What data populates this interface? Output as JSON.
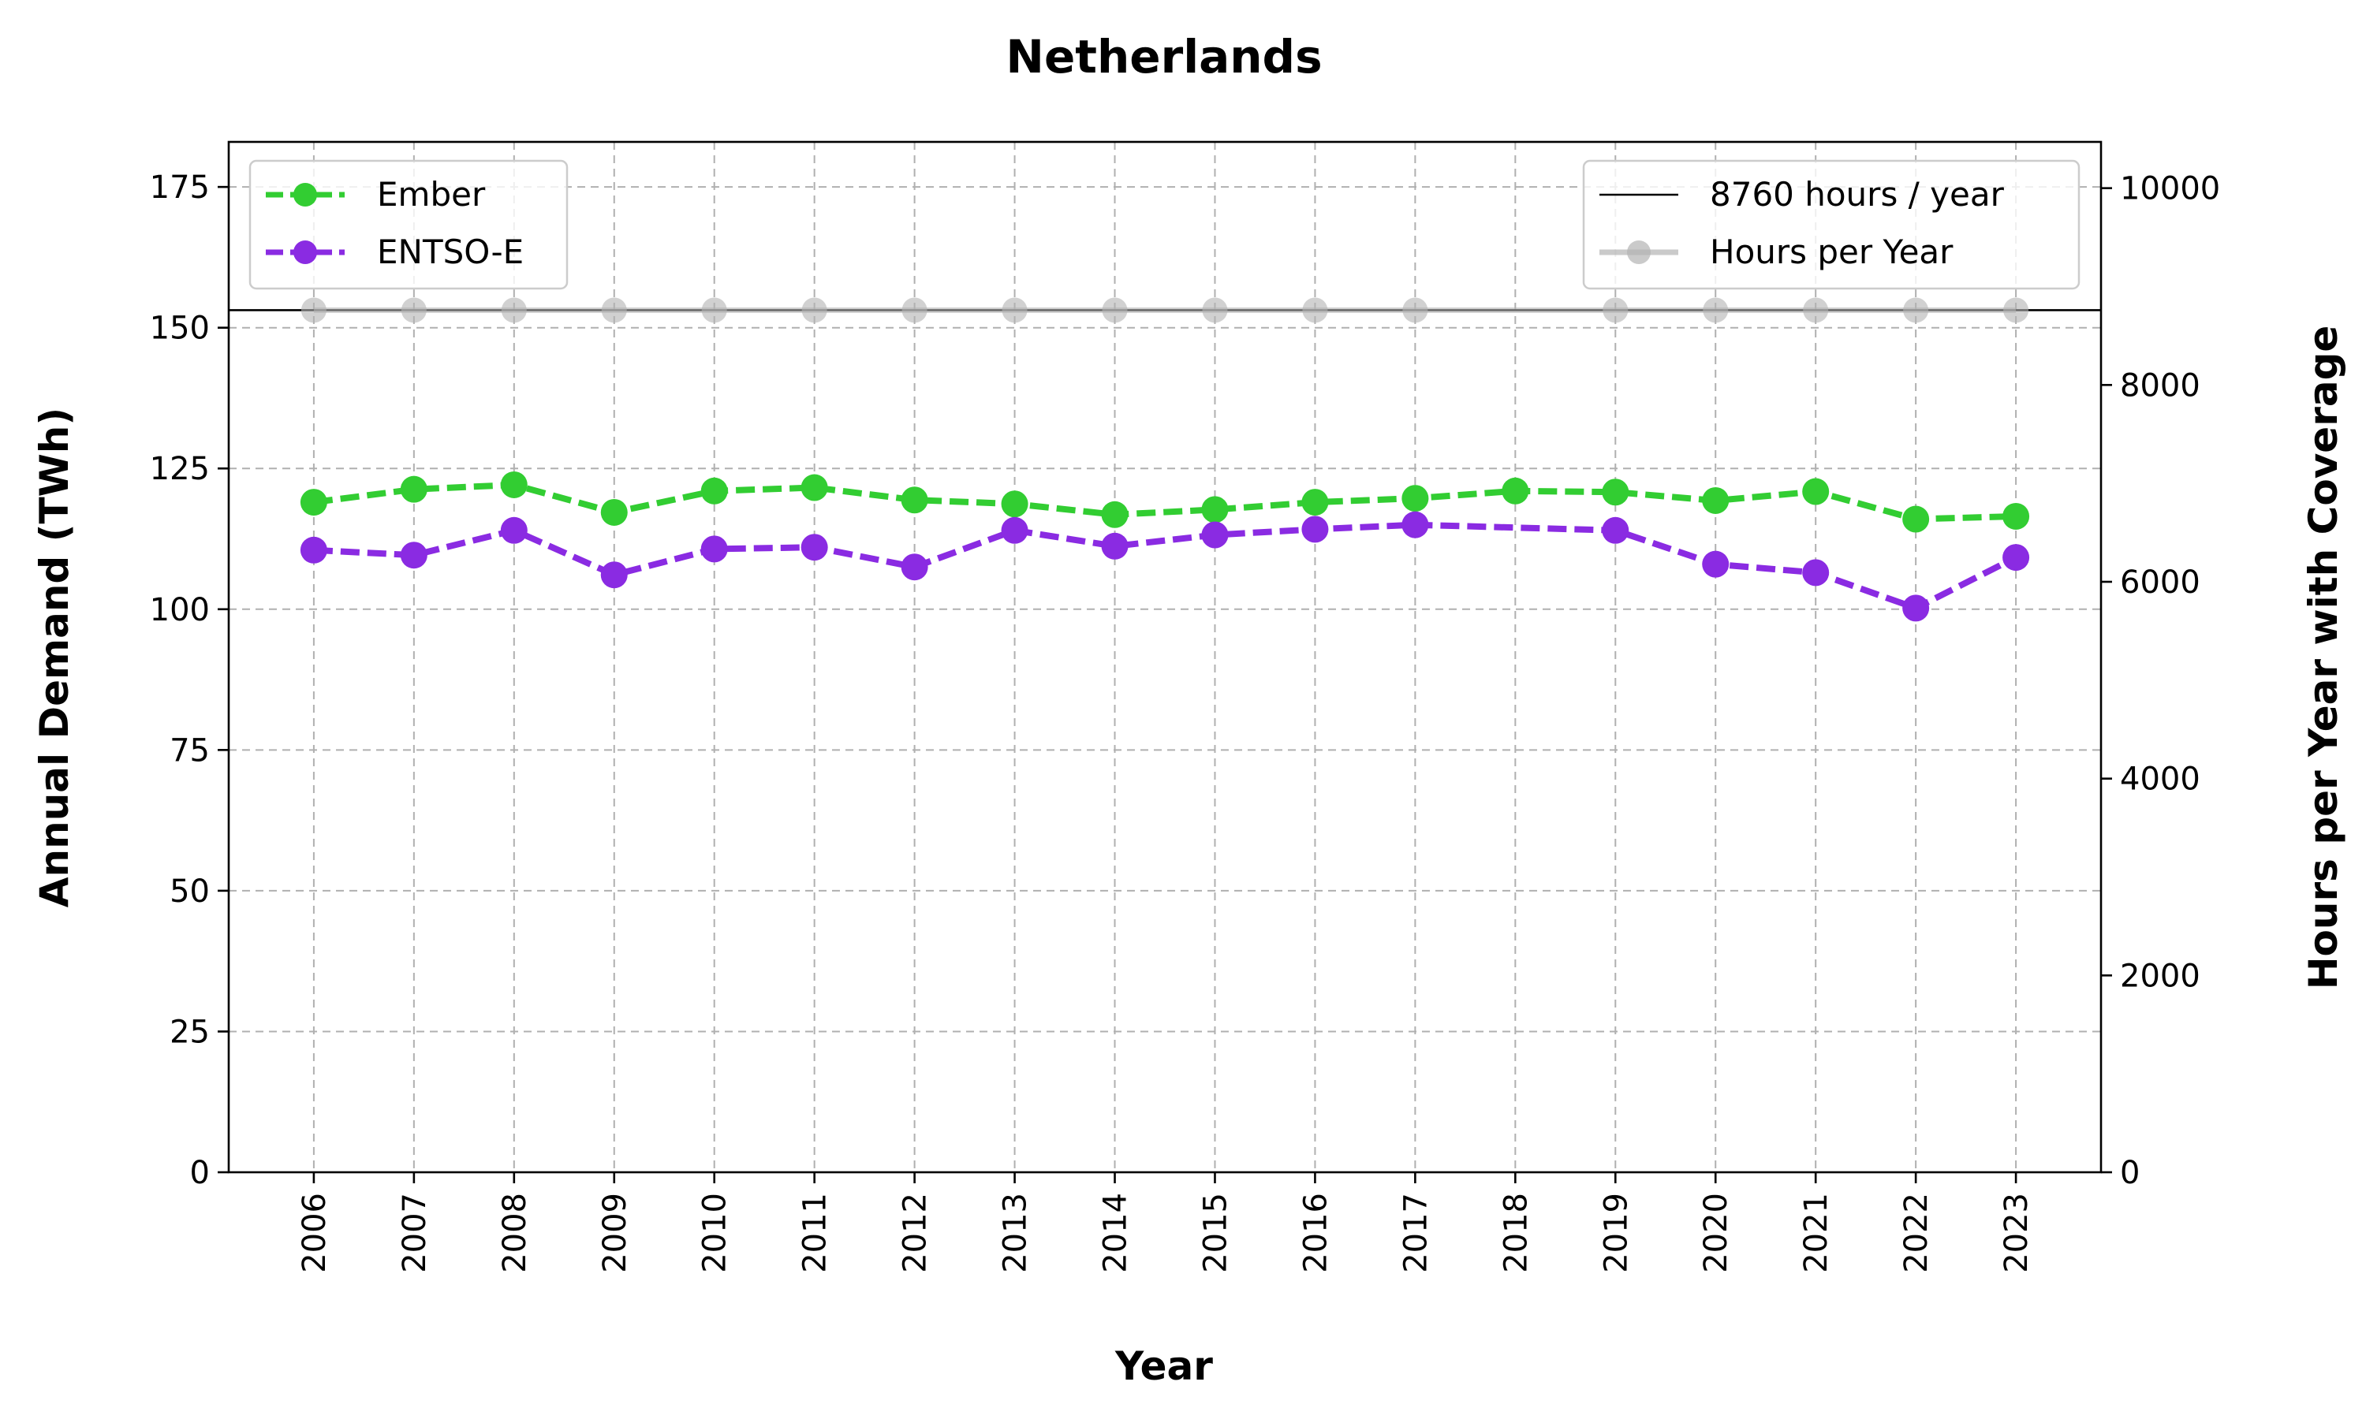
{
  "chart_data": {
    "type": "line",
    "title": "Netherlands",
    "xlabel": "Year",
    "ylabel": "Annual Demand (TWh)",
    "y2label": "Hours per Year with Coverage",
    "categories": [
      "2006",
      "2007",
      "2008",
      "2009",
      "2010",
      "2011",
      "2012",
      "2013",
      "2014",
      "2015",
      "2016",
      "2017",
      "2018",
      "2019",
      "2020",
      "2021",
      "2022",
      "2023"
    ],
    "ylim": [
      0,
      183
    ],
    "y2lim": [
      0,
      10470
    ],
    "yticks": [
      0,
      25,
      50,
      75,
      100,
      125,
      150,
      175
    ],
    "y2ticks": [
      0,
      2000,
      4000,
      6000,
      8000,
      10000
    ],
    "grid": true,
    "series": [
      {
        "name": "Ember",
        "axis": "left",
        "color": "#32cd32",
        "linestyle": "dashed",
        "marker": "circle",
        "values": [
          119.0,
          121.3,
          122.1,
          117.2,
          121.0,
          121.6,
          119.4,
          118.7,
          116.8,
          117.7,
          119.0,
          119.7,
          121.0,
          120.8,
          119.3,
          120.9,
          116.0,
          116.5
        ]
      },
      {
        "name": "ENTSO-E",
        "axis": "left",
        "color": "#8a2be2",
        "linestyle": "dashed",
        "marker": "circle",
        "values": [
          110.5,
          109.6,
          114.0,
          106.1,
          110.7,
          111.0,
          107.5,
          114.0,
          111.2,
          113.2,
          114.2,
          115.0,
          null,
          114.0,
          108.0,
          106.5,
          100.2,
          109.2
        ]
      },
      {
        "name": "Hours per Year",
        "axis": "right",
        "color": "#b3b3b3",
        "linestyle": "solid",
        "marker": "circle",
        "values": [
          8760,
          8760,
          8760,
          8760,
          8760,
          8760,
          8760,
          8760,
          8760,
          8760,
          8760,
          8760,
          null,
          8760,
          8760,
          8760,
          8760,
          8760
        ]
      }
    ],
    "reference_lines": [
      {
        "name": "8760 hours / year",
        "axis": "right",
        "value": 8760,
        "color": "#000000"
      }
    ],
    "legends": [
      {
        "placement": "upper-left",
        "entries": [
          "Ember",
          "ENTSO-E"
        ]
      },
      {
        "placement": "upper-right",
        "entries": [
          "8760 hours / year",
          "Hours per Year"
        ]
      }
    ]
  }
}
